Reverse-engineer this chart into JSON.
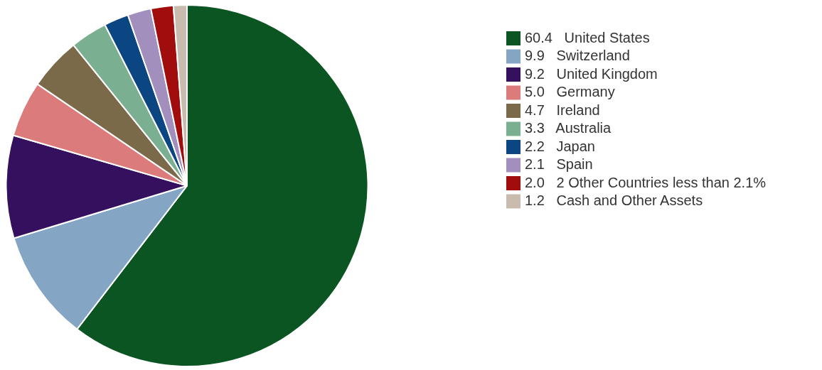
{
  "chart_data": {
    "type": "pie",
    "categories": [
      "United States",
      "Switzerland",
      "United Kingdom",
      "Germany",
      "Ireland",
      "Australia",
      "Japan",
      "Spain",
      "2 Other Countries less than 2.1%",
      "Cash and Other Assets"
    ],
    "values": [
      60.4,
      9.9,
      9.2,
      5.0,
      4.7,
      3.3,
      2.2,
      2.1,
      2.0,
      1.2
    ],
    "value_labels": [
      "60.4",
      "9.9",
      "9.2",
      "5.0",
      "4.7",
      "3.3",
      "2.2",
      "2.1",
      "2.0",
      "1.2"
    ],
    "colors": [
      "#0b5523",
      "#84a5c4",
      "#34105e",
      "#db7b7b",
      "#7b6a4a",
      "#7aaf91",
      "#0c4682",
      "#a28fbd",
      "#a10c0c",
      "#c9bcae"
    ],
    "legend": "right"
  }
}
